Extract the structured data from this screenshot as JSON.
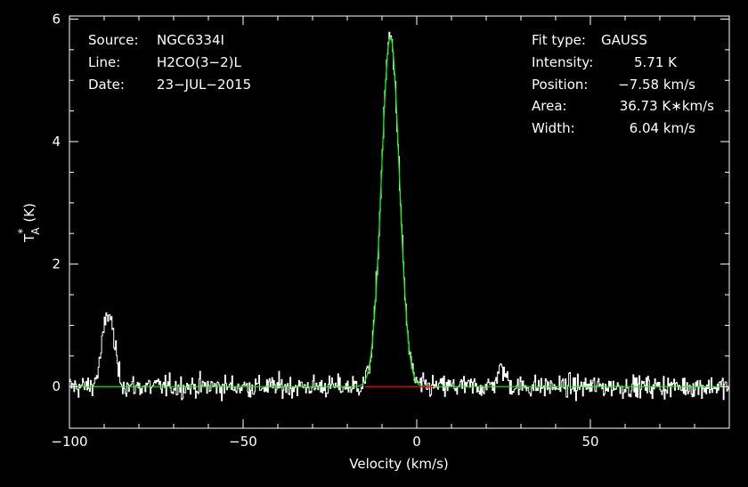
{
  "chart_data": {
    "type": "line",
    "xlabel": "Velocity (km/s)",
    "ylabel": "T",
    "ylabel_sup": "*",
    "ylabel_sub": "A",
    "ylabel_unit": "(K)",
    "xlim": [
      -100,
      90
    ],
    "ylim": [
      -0.68,
      6.05
    ],
    "x_ticks": [
      -100,
      -50,
      0,
      50
    ],
    "x_tick_labels": [
      "−100",
      "−50",
      "0",
      "50"
    ],
    "y_ticks": [
      0,
      2,
      4,
      6
    ],
    "y_tick_labels": [
      "0",
      "2",
      "4",
      "6"
    ],
    "grid": false,
    "info_left": [
      {
        "key": "Source:",
        "value": "NGC6334I"
      },
      {
        "key": "Line:",
        "value": "H2CO(3−2)L"
      },
      {
        "key": "Date:",
        "value": "23−JUL−2015"
      }
    ],
    "info_right": [
      {
        "key": "Fit type:",
        "value": "GAUSS"
      },
      {
        "key": "Intensity:",
        "value": "5.71 K"
      },
      {
        "key": "Position:",
        "value": "−7.58 km/s"
      },
      {
        "key": "Area:",
        "value": "36.73 K∗km/s"
      },
      {
        "key": "Width:",
        "value": "6.04 km/s"
      }
    ],
    "series": [
      {
        "role": "spectrum",
        "color": "#ffffff",
        "channel_width_kms": 0.25,
        "noise_rms_K": 0.09,
        "components": [
          {
            "center": -88.8,
            "amplitude": 1.2,
            "fwhm": 4.0
          },
          {
            "center": -7.58,
            "amplitude": 5.71,
            "fwhm": 6.04
          },
          {
            "center": 24.5,
            "amplitude": 0.28,
            "fwhm": 3.0
          }
        ]
      },
      {
        "role": "gaussian_fit",
        "color": "#00ff00",
        "center": -7.58,
        "amplitude": 5.71,
        "fwhm": 6.04
      },
      {
        "role": "fit_window",
        "color": "#ff0000",
        "x_range": [
          -15,
          5
        ],
        "y": 0
      }
    ]
  }
}
